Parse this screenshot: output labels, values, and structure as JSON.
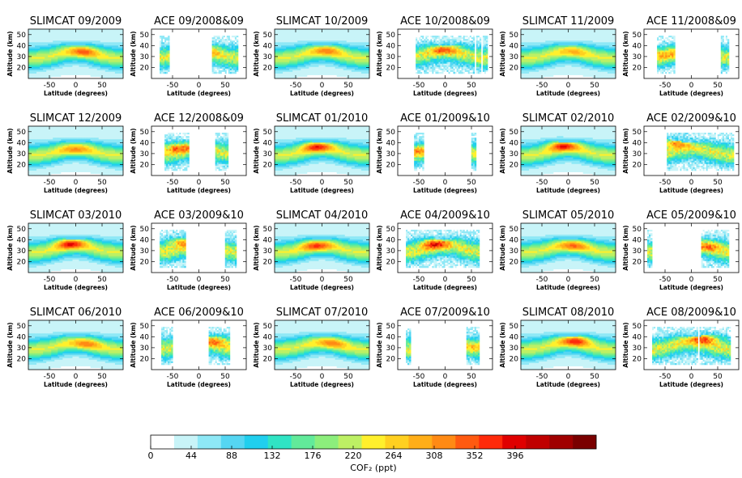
{
  "chart_data": {
    "type": "heatmap",
    "layout": {
      "rows": 4,
      "cols": 6
    },
    "common": {
      "xlabel": "Latitude (degrees)",
      "ylabel": "Altitude (km)",
      "xticks": [
        -50,
        0,
        50
      ],
      "yticks": [
        20,
        30,
        40,
        50
      ],
      "xlim": [
        -90,
        90
      ],
      "ylim": [
        10,
        55
      ]
    },
    "colorbar": {
      "label": "COF₂ (ppt)",
      "min": 0,
      "max": 484,
      "ticks": [
        0,
        44,
        88,
        132,
        176,
        220,
        264,
        308,
        352,
        396
      ],
      "colors": [
        "#ffffff",
        "#c8f4f8",
        "#8ee8f6",
        "#55d6f2",
        "#20cfee",
        "#30e4c4",
        "#62ea9a",
        "#8cee7c",
        "#bdf064",
        "#fff02c",
        "#ffd020",
        "#ffae18",
        "#ff8a14",
        "#ff5a10",
        "#ff2a0a",
        "#e00000",
        "#c00000",
        "#a00000",
        "#7a0000"
      ]
    },
    "panels": [
      {
        "title": "SLIMCAT 09/2009",
        "source": "SLIMCAT",
        "peak": {
          "lat": 15,
          "alt": 34,
          "value": 320
        },
        "coverage": [
          [
            -90,
            90
          ]
        ]
      },
      {
        "title": "ACE 09/2008&09",
        "source": "ACE",
        "peak": {
          "lat": 15,
          "alt": 34,
          "value": 300
        },
        "coverage": [
          [
            -75,
            -55
          ],
          [
            25,
            75
          ]
        ]
      },
      {
        "title": "SLIMCAT 10/2009",
        "source": "SLIMCAT",
        "peak": {
          "lat": 10,
          "alt": 35,
          "value": 300
        },
        "coverage": [
          [
            -90,
            90
          ]
        ]
      },
      {
        "title": "ACE 10/2008&09",
        "source": "ACE",
        "peak": {
          "lat": 0,
          "alt": 36,
          "value": 320
        },
        "coverage": [
          [
            -55,
            55
          ],
          [
            60,
            68
          ],
          [
            72,
            80
          ]
        ]
      },
      {
        "title": "SLIMCAT 11/2009",
        "source": "SLIMCAT",
        "peak": {
          "lat": 10,
          "alt": 34,
          "value": 260
        },
        "coverage": [
          [
            -90,
            90
          ]
        ]
      },
      {
        "title": "ACE 11/2008&09",
        "source": "ACE",
        "peak": {
          "lat": -50,
          "alt": 32,
          "value": 280
        },
        "coverage": [
          [
            -65,
            -30
          ],
          [
            55,
            70
          ]
        ]
      },
      {
        "title": "SLIMCAT 12/2009",
        "source": "SLIMCAT",
        "peak": {
          "lat": 0,
          "alt": 33,
          "value": 290
        },
        "coverage": [
          [
            -90,
            90
          ]
        ]
      },
      {
        "title": "ACE 12/2008&09",
        "source": "ACE",
        "peak": {
          "lat": -40,
          "alt": 35,
          "value": 340
        },
        "coverage": [
          [
            -65,
            -20
          ],
          [
            30,
            55
          ]
        ]
      },
      {
        "title": "SLIMCAT 01/2010",
        "source": "SLIMCAT",
        "peak": {
          "lat": -10,
          "alt": 36,
          "value": 360
        },
        "coverage": [
          [
            -90,
            90
          ]
        ]
      },
      {
        "title": "ACE 01/2009&10",
        "source": "ACE",
        "peak": {
          "lat": -55,
          "alt": 33,
          "value": 300
        },
        "coverage": [
          [
            -60,
            -40
          ],
          [
            50,
            60
          ]
        ]
      },
      {
        "title": "SLIMCAT 02/2010",
        "source": "SLIMCAT",
        "peak": {
          "lat": -10,
          "alt": 37,
          "value": 370
        },
        "coverage": [
          [
            -90,
            90
          ]
        ]
      },
      {
        "title": "ACE 02/2009&10",
        "source": "ACE",
        "peak": {
          "lat": -30,
          "alt": 40,
          "value": 380
        },
        "coverage": [
          [
            -45,
            80
          ]
        ]
      },
      {
        "title": "SLIMCAT 03/2010",
        "source": "SLIMCAT",
        "peak": {
          "lat": -10,
          "alt": 36,
          "value": 370
        },
        "coverage": [
          [
            -90,
            90
          ]
        ]
      },
      {
        "title": "ACE 03/2009&10",
        "source": "ACE",
        "peak": {
          "lat": -30,
          "alt": 38,
          "value": 330
        },
        "coverage": [
          [
            -75,
            -25
          ],
          [
            50,
            70
          ]
        ]
      },
      {
        "title": "SLIMCAT 04/2010",
        "source": "SLIMCAT",
        "peak": {
          "lat": -10,
          "alt": 34,
          "value": 340
        },
        "coverage": [
          [
            -90,
            90
          ]
        ]
      },
      {
        "title": "ACE 04/2009&10",
        "source": "ACE",
        "peak": {
          "lat": -20,
          "alt": 36,
          "value": 370
        },
        "coverage": [
          [
            -75,
            65
          ]
        ]
      },
      {
        "title": "SLIMCAT 05/2010",
        "source": "SLIMCAT",
        "peak": {
          "lat": 10,
          "alt": 34,
          "value": 310
        },
        "coverage": [
          [
            -90,
            90
          ]
        ]
      },
      {
        "title": "ACE 05/2009&10",
        "source": "ACE",
        "peak": {
          "lat": 35,
          "alt": 34,
          "value": 310
        },
        "coverage": [
          [
            -85,
            -75
          ],
          [
            20,
            70
          ]
        ]
      },
      {
        "title": "SLIMCAT 06/2010",
        "source": "SLIMCAT",
        "peak": {
          "lat": 20,
          "alt": 33,
          "value": 300
        },
        "coverage": [
          [
            -90,
            90
          ]
        ]
      },
      {
        "title": "ACE 06/2009&10",
        "source": "ACE",
        "peak": {
          "lat": 30,
          "alt": 36,
          "value": 330
        },
        "coverage": [
          [
            -70,
            -50
          ],
          [
            20,
            60
          ]
        ]
      },
      {
        "title": "SLIMCAT 07/2010",
        "source": "SLIMCAT",
        "peak": {
          "lat": 20,
          "alt": 34,
          "value": 300
        },
        "coverage": [
          [
            -90,
            90
          ]
        ]
      },
      {
        "title": "ACE 07/2009&10",
        "source": "ACE",
        "peak": {
          "lat": 60,
          "alt": 32,
          "value": 260
        },
        "coverage": [
          [
            -75,
            -65
          ],
          [
            40,
            65
          ]
        ]
      },
      {
        "title": "SLIMCAT 08/2010",
        "source": "SLIMCAT",
        "peak": {
          "lat": 15,
          "alt": 36,
          "value": 360
        },
        "coverage": [
          [
            -90,
            90
          ]
        ]
      },
      {
        "title": "ACE 08/2009&10",
        "source": "ACE",
        "peak": {
          "lat": 25,
          "alt": 38,
          "value": 380
        },
        "coverage": [
          [
            -75,
            12
          ],
          [
            17,
            75
          ]
        ]
      }
    ]
  }
}
